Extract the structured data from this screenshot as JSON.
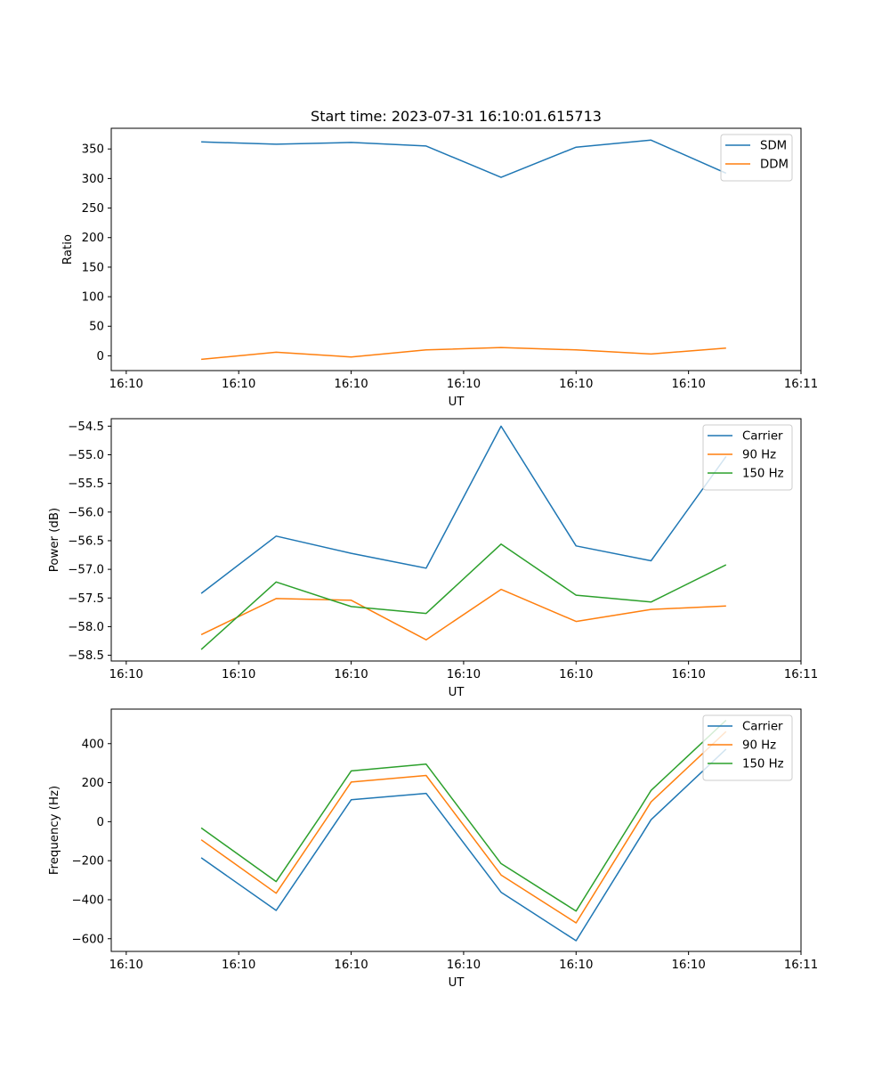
{
  "figure_title": "Start time: 2023-07-31 16:10:01.615713",
  "colors": {
    "blue": "#1f77b4",
    "orange": "#ff7f0e",
    "green": "#2ca02c"
  },
  "chart_data": [
    {
      "type": "line",
      "title": "Start time: 2023-07-31 16:10:01.615713",
      "xlabel": "UT",
      "ylabel": "Ratio",
      "x_index": [
        1,
        2,
        3,
        4,
        5,
        6,
        7,
        8
      ],
      "xlim": [
        -0.2,
        9.0
      ],
      "xticks": [
        0,
        1.5,
        3,
        4.5,
        6,
        7.5,
        9
      ],
      "xtick_labels": [
        "16:10",
        "16:10",
        "16:10",
        "16:10",
        "16:10",
        "16:10",
        "16:11"
      ],
      "ylim": [
        -25,
        385
      ],
      "yticks": [
        0,
        50,
        100,
        150,
        200,
        250,
        300,
        350
      ],
      "ytick_labels": [
        "0",
        "50",
        "100",
        "150",
        "200",
        "250",
        "300",
        "350"
      ],
      "legend_position": "top-right",
      "series": [
        {
          "name": "SDM",
          "color": "#1f77b4",
          "values": [
            362,
            358,
            361,
            355,
            302,
            353,
            365,
            309
          ]
        },
        {
          "name": "DDM",
          "color": "#ff7f0e",
          "values": [
            -6,
            6,
            -2,
            10,
            14,
            10,
            3,
            13
          ]
        }
      ]
    },
    {
      "type": "line",
      "xlabel": "UT",
      "ylabel": "Power (dB)",
      "x_index": [
        1,
        2,
        3,
        4,
        5,
        6,
        7,
        8
      ],
      "xlim": [
        -0.2,
        9.0
      ],
      "xticks": [
        0,
        1.5,
        3,
        4.5,
        6,
        7.5,
        9
      ],
      "xtick_labels": [
        "16:10",
        "16:10",
        "16:10",
        "16:10",
        "16:10",
        "16:10",
        "16:11"
      ],
      "ylim": [
        -58.6,
        -54.37
      ],
      "yticks": [
        -58.5,
        -58.0,
        -57.5,
        -57.0,
        -56.5,
        -56.0,
        -55.5,
        -55.0,
        -54.5
      ],
      "ytick_labels": [
        "−58.5",
        "−58.0",
        "−57.5",
        "−57.0",
        "−56.5",
        "−56.0",
        "−55.5",
        "−55.0",
        "−54.5"
      ],
      "legend_position": "top-right",
      "series": [
        {
          "name": "Carrier",
          "color": "#1f77b4",
          "values": [
            -57.42,
            -56.42,
            -56.72,
            -56.98,
            -54.5,
            -56.59,
            -56.85,
            -55.03
          ]
        },
        {
          "name": "90 Hz",
          "color": "#ff7f0e",
          "values": [
            -58.14,
            -57.51,
            -57.54,
            -58.23,
            -57.35,
            -57.91,
            -57.7,
            -57.64
          ]
        },
        {
          "name": "150 Hz",
          "color": "#2ca02c",
          "values": [
            -58.4,
            -57.22,
            -57.65,
            -57.77,
            -56.56,
            -57.45,
            -57.57,
            -56.92
          ]
        }
      ]
    },
    {
      "type": "line",
      "xlabel": "UT",
      "ylabel": "Frequency (Hz)",
      "x_index": [
        1,
        2,
        3,
        4,
        5,
        6,
        7,
        8
      ],
      "xlim": [
        -0.2,
        9.0
      ],
      "xticks": [
        0,
        1.5,
        3,
        4.5,
        6,
        7.5,
        9
      ],
      "xtick_labels": [
        "16:10",
        "16:10",
        "16:10",
        "16:10",
        "16:10",
        "16:10",
        "16:11"
      ],
      "ylim": [
        -665,
        577
      ],
      "yticks": [
        -600,
        -400,
        -200,
        0,
        200,
        400
      ],
      "ytick_labels": [
        "−600",
        "−400",
        "−200",
        "0",
        "200",
        "400"
      ],
      "legend_position": "top-right",
      "series": [
        {
          "name": "Carrier",
          "color": "#1f77b4",
          "values": [
            -185,
            -455,
            112,
            145,
            -362,
            -610,
            10,
            372
          ]
        },
        {
          "name": "90 Hz",
          "color": "#ff7f0e",
          "values": [
            -93,
            -367,
            203,
            237,
            -273,
            -519,
            101,
            462
          ]
        },
        {
          "name": "150 Hz",
          "color": "#2ca02c",
          "values": [
            -32,
            -307,
            260,
            295,
            -215,
            -458,
            160,
            520
          ]
        }
      ]
    }
  ]
}
